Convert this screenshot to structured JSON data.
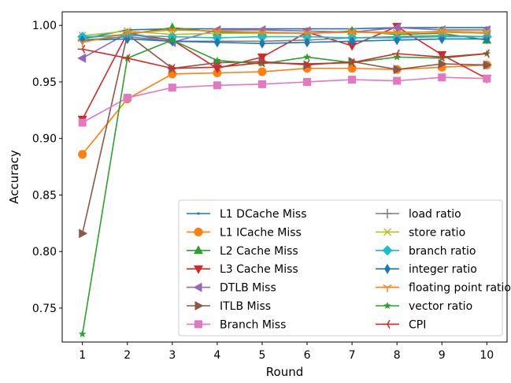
{
  "chart_data": {
    "type": "line",
    "title": "",
    "xlabel": "Round",
    "ylabel": "Accuracy",
    "xlim": [
      0.55,
      10.45
    ],
    "ylim": [
      0.72,
      1.012
    ],
    "x": [
      1,
      2,
      3,
      4,
      5,
      6,
      7,
      8,
      9,
      10
    ],
    "xticks": [
      "1",
      "2",
      "3",
      "4",
      "5",
      "6",
      "7",
      "8",
      "9",
      "10"
    ],
    "yticks": [
      "0.75",
      "0.80",
      "0.85",
      "0.90",
      "0.95",
      "1.00"
    ],
    "ytick_values": [
      0.75,
      0.8,
      0.85,
      0.9,
      0.95,
      1.0
    ],
    "grid": false,
    "legend_position": "lower-right",
    "legend_columns": 2,
    "series": [
      {
        "name": "L1 DCache Miss",
        "color": "#1f77b4",
        "marker": "point",
        "values": [
          0.988,
          0.996,
          0.997,
          0.997,
          0.997,
          0.997,
          0.997,
          0.998,
          0.998,
          0.998
        ]
      },
      {
        "name": "L1 ICache Miss",
        "color": "#ff7f0e",
        "marker": "circle",
        "values": [
          0.886,
          0.935,
          0.957,
          0.958,
          0.959,
          0.962,
          0.962,
          0.961,
          0.963,
          0.965
        ]
      },
      {
        "name": "L2 Cache Miss",
        "color": "#2ca02c",
        "marker": "triangle-up",
        "values": [
          0.989,
          0.992,
          0.998,
          0.994,
          0.994,
          0.993,
          0.995,
          0.992,
          0.993,
          0.987
        ]
      },
      {
        "name": "L3 Cache Miss",
        "color": "#d62728",
        "marker": "triangle-down",
        "values": [
          0.917,
          0.993,
          0.987,
          0.962,
          0.972,
          0.994,
          0.982,
          0.999,
          0.974,
          0.953
        ]
      },
      {
        "name": "DTLB Miss",
        "color": "#9467bd",
        "marker": "triangle-left",
        "values": [
          0.971,
          0.993,
          0.985,
          0.996,
          0.996,
          0.995,
          0.994,
          0.998,
          0.996,
          0.996
        ]
      },
      {
        "name": "ITLB Miss",
        "color": "#8c564b",
        "marker": "triangle-right",
        "values": [
          0.816,
          0.992,
          0.962,
          0.967,
          0.968,
          0.965,
          0.968,
          0.961,
          0.966,
          0.965
        ]
      },
      {
        "name": "Branch Miss",
        "color": "#e377c2",
        "marker": "square",
        "values": [
          0.914,
          0.936,
          0.945,
          0.947,
          0.948,
          0.95,
          0.952,
          0.951,
          0.954,
          0.953
        ]
      },
      {
        "name": "load ratio",
        "color": "#7f7f7f",
        "marker": "plus",
        "values": [
          0.987,
          0.99,
          0.986,
          0.986,
          0.986,
          0.987,
          0.989,
          0.99,
          0.991,
          0.99
        ]
      },
      {
        "name": "store ratio",
        "color": "#bcbd22",
        "marker": "x",
        "values": [
          0.991,
          0.995,
          0.992,
          0.993,
          0.993,
          0.993,
          0.994,
          0.993,
          0.995,
          0.994
        ]
      },
      {
        "name": "branch ratio",
        "color": "#17becf",
        "marker": "diamond",
        "values": [
          0.99,
          0.991,
          0.99,
          0.989,
          0.99,
          0.99,
          0.989,
          0.989,
          0.99,
          0.99
        ]
      },
      {
        "name": "integer ratio",
        "color": "#1f77b4",
        "marker": "thin-diamond",
        "values": [
          0.987,
          0.988,
          0.986,
          0.985,
          0.984,
          0.985,
          0.986,
          0.987,
          0.988,
          0.988
        ]
      },
      {
        "name": "floating point ratio",
        "color": "#ff7f0e",
        "marker": "tri-down",
        "values": [
          0.985,
          0.993,
          0.996,
          0.995,
          0.994,
          0.993,
          0.994,
          0.994,
          0.994,
          0.993
        ]
      },
      {
        "name": "vector ratio",
        "color": "#2ca02c",
        "marker": "star",
        "values": [
          0.727,
          0.971,
          0.987,
          0.969,
          0.966,
          0.972,
          0.967,
          0.972,
          0.971,
          0.975
        ]
      },
      {
        "name": "CPI",
        "color": "#d62728",
        "marker": "tri-left",
        "values": [
          0.979,
          0.971,
          0.962,
          0.963,
          0.967,
          0.966,
          0.967,
          0.975,
          0.972,
          0.975
        ]
      }
    ]
  }
}
